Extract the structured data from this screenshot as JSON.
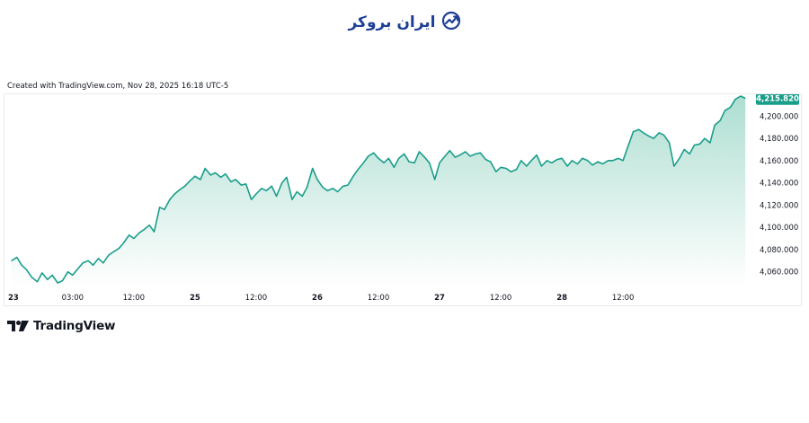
{
  "brand": {
    "name": "ایران بروکر",
    "icon": "growth-chart-icon",
    "color": "#1e3f96"
  },
  "watermark_text": "Created with TradingView.com, Nov 28, 2025 16:18 UTC-5",
  "footer": {
    "logo_text": "TradingView",
    "logo_icon": "tradingview-logo-icon"
  },
  "colors": {
    "line": "#1a9e8a",
    "fill_top": "#a9dccf",
    "price_label_bg": "#1a9e8a"
  },
  "chart_data": {
    "type": "area",
    "title": "",
    "xlabel": "",
    "ylabel": "",
    "x_ticks": [
      "23",
      "03:00",
      "12:00",
      "25",
      "12:00",
      "26",
      "12:00",
      "27",
      "12:00",
      "28",
      "12:00"
    ],
    "x_ticks_bold": [
      "23",
      "25",
      "26",
      "27",
      "28"
    ],
    "y_ticks": [
      "4,200.000",
      "4,180.000",
      "4,160.000",
      "4,140.000",
      "4,120.000",
      "4,100.000",
      "4,080.000",
      "4,060.000"
    ],
    "ylim": [
      4046,
      4218
    ],
    "x_unit": "hours since Nov 23 open (axis tick positions: 23=0, 03:00=9, 12:00=18, 25=27, 12:00=36, 26=45, 12:00=54, 27=63, 12:00=72, 28=81, 12:00=90)",
    "last_price": "4,215.820",
    "grid": false,
    "series": [
      {
        "name": "",
        "points": [
          [
            0,
            4070
          ],
          [
            0.8,
            4073
          ],
          [
            1.5,
            4066
          ],
          [
            2.2,
            4062
          ],
          [
            3.0,
            4055
          ],
          [
            3.8,
            4051
          ],
          [
            4.5,
            4059
          ],
          [
            5.3,
            4053
          ],
          [
            6.0,
            4057
          ],
          [
            6.8,
            4050
          ],
          [
            7.5,
            4052
          ],
          [
            8.3,
            4060
          ],
          [
            9.0,
            4057
          ],
          [
            9.8,
            4063
          ],
          [
            10.5,
            4068
          ],
          [
            11.3,
            4070
          ],
          [
            12.0,
            4066
          ],
          [
            12.8,
            4072
          ],
          [
            13.5,
            4068
          ],
          [
            14.3,
            4075
          ],
          [
            15.0,
            4078
          ],
          [
            15.8,
            4081
          ],
          [
            16.5,
            4086
          ],
          [
            17.3,
            4093
          ],
          [
            18.0,
            4090
          ],
          [
            18.8,
            4095
          ],
          [
            19.5,
            4098
          ],
          [
            20.3,
            4102
          ],
          [
            21.0,
            4096
          ],
          [
            21.8,
            4118
          ],
          [
            22.5,
            4116
          ],
          [
            23.3,
            4125
          ],
          [
            24.0,
            4130
          ],
          [
            24.8,
            4134
          ],
          [
            25.5,
            4137
          ],
          [
            26.3,
            4142
          ],
          [
            27.0,
            4146
          ],
          [
            27.8,
            4143
          ],
          [
            28.5,
            4153
          ],
          [
            29.3,
            4147
          ],
          [
            30.0,
            4149
          ],
          [
            30.8,
            4145
          ],
          [
            31.5,
            4148
          ],
          [
            32.3,
            4141
          ],
          [
            33.0,
            4143
          ],
          [
            33.8,
            4138
          ],
          [
            34.5,
            4139
          ],
          [
            35.3,
            4125
          ],
          [
            36.0,
            4130
          ],
          [
            36.8,
            4135
          ],
          [
            37.5,
            4133
          ],
          [
            38.3,
            4137
          ],
          [
            39.0,
            4128
          ],
          [
            39.8,
            4140
          ],
          [
            40.5,
            4145
          ],
          [
            41.3,
            4125
          ],
          [
            42.0,
            4132
          ],
          [
            42.8,
            4128
          ],
          [
            43.5,
            4136
          ],
          [
            44.3,
            4153
          ],
          [
            45.0,
            4143
          ],
          [
            45.8,
            4136
          ],
          [
            46.5,
            4133
          ],
          [
            47.3,
            4135
          ],
          [
            48.0,
            4132
          ],
          [
            48.8,
            4137
          ],
          [
            49.5,
            4138
          ],
          [
            50.3,
            4146
          ],
          [
            51.0,
            4152
          ],
          [
            51.8,
            4158
          ],
          [
            52.5,
            4164
          ],
          [
            53.3,
            4167
          ],
          [
            54.0,
            4162
          ],
          [
            54.8,
            4158
          ],
          [
            55.5,
            4162
          ],
          [
            56.3,
            4154
          ],
          [
            57.0,
            4162
          ],
          [
            57.8,
            4166
          ],
          [
            58.5,
            4159
          ],
          [
            59.3,
            4158
          ],
          [
            60.0,
            4168
          ],
          [
            60.8,
            4163
          ],
          [
            61.5,
            4158
          ],
          [
            62.3,
            4143
          ],
          [
            63.0,
            4158
          ],
          [
            63.8,
            4164
          ],
          [
            64.5,
            4169
          ],
          [
            65.3,
            4163
          ],
          [
            66.0,
            4165
          ],
          [
            66.8,
            4168
          ],
          [
            67.5,
            4164
          ],
          [
            68.3,
            4166
          ],
          [
            69.0,
            4167
          ],
          [
            69.8,
            4161
          ],
          [
            70.5,
            4159
          ],
          [
            71.3,
            4150
          ],
          [
            72.0,
            4154
          ],
          [
            72.8,
            4153
          ],
          [
            73.5,
            4150
          ],
          [
            74.3,
            4152
          ],
          [
            75.0,
            4160
          ],
          [
            75.8,
            4155
          ],
          [
            76.5,
            4160
          ],
          [
            77.3,
            4165
          ],
          [
            78.0,
            4155
          ],
          [
            78.8,
            4160
          ],
          [
            79.5,
            4158
          ],
          [
            80.3,
            4161
          ],
          [
            81.0,
            4162
          ],
          [
            81.8,
            4155
          ],
          [
            82.5,
            4160
          ],
          [
            83.3,
            4157
          ],
          [
            84.0,
            4162
          ],
          [
            84.8,
            4160
          ],
          [
            85.5,
            4156
          ],
          [
            86.3,
            4159
          ],
          [
            87.0,
            4157
          ],
          [
            87.8,
            4160
          ],
          [
            88.5,
            4160
          ],
          [
            89.3,
            4162
          ],
          [
            90.0,
            4160
          ],
          [
            90.8,
            4174
          ],
          [
            91.5,
            4186
          ],
          [
            92.3,
            4188
          ],
          [
            93.0,
            4185
          ],
          [
            93.8,
            4182
          ],
          [
            94.5,
            4180
          ],
          [
            95.3,
            4185
          ],
          [
            96.0,
            4183
          ],
          [
            96.8,
            4176
          ],
          [
            97.5,
            4155
          ],
          [
            98.3,
            4162
          ],
          [
            99.0,
            4170
          ],
          [
            99.8,
            4166
          ],
          [
            100.5,
            4174
          ],
          [
            101.3,
            4175
          ],
          [
            102.0,
            4180
          ],
          [
            102.8,
            4176
          ],
          [
            103.5,
            4192
          ],
          [
            104.3,
            4196
          ],
          [
            105.0,
            4205
          ],
          [
            105.8,
            4208
          ],
          [
            106.5,
            4215
          ],
          [
            107.3,
            4218
          ],
          [
            108.0,
            4216
          ]
        ]
      }
    ]
  }
}
